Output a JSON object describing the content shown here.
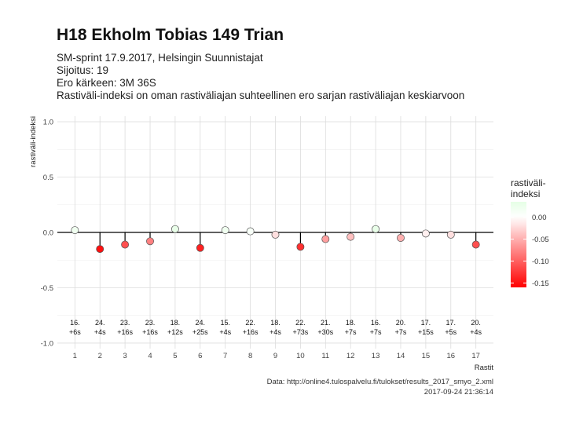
{
  "chart_data": {
    "type": "scatter",
    "title": "H18 Ekholm Tobias 149 Trian",
    "subtitle_lines": [
      "SM-sprint 17.9.2017, Helsingin Suunnistajat",
      "Sijoitus: 19",
      "Ero kärkeen: 3M 36S",
      "Rastiväli-indeksi on oman rastiväliajan suhteellinen ero sarjan rastiväliajan keskiarvoon"
    ],
    "xlabel": "Rastit",
    "ylabel": "rastiväli-indeksi",
    "ylim": [
      -1.05,
      1.05
    ],
    "y_ticks": [
      -1.0,
      -0.5,
      0.0,
      0.5,
      1.0
    ],
    "y_tick_labels": [
      "-1.0",
      "-0.5",
      "0.0",
      "0.5",
      "1.0"
    ],
    "x": [
      1,
      2,
      3,
      4,
      5,
      6,
      7,
      8,
      9,
      10,
      11,
      12,
      13,
      14,
      15,
      16,
      17
    ],
    "x_tick_labels": [
      "1",
      "2",
      "3",
      "4",
      "5",
      "6",
      "7",
      "8",
      "9",
      "10",
      "11",
      "12",
      "13",
      "14",
      "15",
      "16",
      "17"
    ],
    "values": [
      0.02,
      -0.15,
      -0.11,
      -0.08,
      0.03,
      -0.14,
      0.02,
      0.01,
      -0.02,
      -0.13,
      -0.06,
      -0.04,
      0.03,
      -0.05,
      -0.01,
      -0.02,
      -0.11
    ],
    "annotations_rank": [
      "16.",
      "24.",
      "23.",
      "23.",
      "18.",
      "24.",
      "15.",
      "22.",
      "18.",
      "22.",
      "21.",
      "18.",
      "16.",
      "20.",
      "17.",
      "17.",
      "20."
    ],
    "annotations_diff": [
      "+6s",
      "+4s",
      "+16s",
      "+16s",
      "+12s",
      "+25s",
      "+4s",
      "+16s",
      "+4s",
      "+73s",
      "+30s",
      "+7s",
      "+7s",
      "+7s",
      "+15s",
      "+5s",
      "+4s"
    ],
    "grid": true,
    "legend": {
      "title_line1": "rastiväli-",
      "title_line2": "indeksi",
      "position": "right",
      "ticks": [
        0.0,
        -0.05,
        -0.1,
        -0.15
      ],
      "tick_labels": [
        "0.00",
        "-0.05",
        "-0.10",
        "-0.15"
      ],
      "range": [
        -0.16,
        0.035
      ]
    },
    "colors": {
      "low": "#ff0000",
      "mid": "#ffffff",
      "high": "#e5ffe5"
    }
  },
  "caption": {
    "line1": "Data: http://online4.tulospalvelu.fi/tulokset/results_2017_smyo_2.xml",
    "line2": "2017-09-24 21:36:14"
  }
}
